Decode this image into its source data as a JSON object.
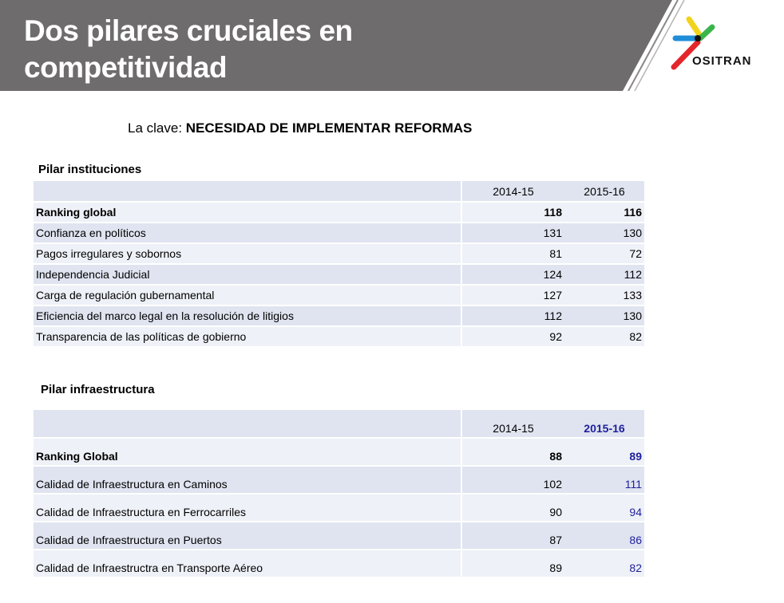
{
  "header": {
    "title_line1": "Dos pilares cruciales en",
    "title_line2": "competitividad",
    "logo_text": "OSITRAN"
  },
  "subtitle": {
    "prefix": "La clave: ",
    "emphasis": "NECESIDAD DE IMPLEMENTAR REFORMAS"
  },
  "colors": {
    "banner": "#6e6c6c",
    "table_row_a": "#dfe4f0",
    "table_row_b": "#eef1f7",
    "blue_value": "#1f1f9c"
  },
  "institutions": {
    "title": "Pilar instituciones",
    "columns": [
      "",
      "2014-15",
      "2015-16"
    ],
    "rows": [
      {
        "label": "Ranking global",
        "v2014": "118",
        "v2015": "116"
      },
      {
        "label": "Confianza en políticos",
        "v2014": "131",
        "v2015": "130"
      },
      {
        "label": "Pagos irregulares y sobornos",
        "v2014": "81",
        "v2015": "72"
      },
      {
        "label": "Independencia Judicial",
        "v2014": "124",
        "v2015": "112"
      },
      {
        "label": "Carga de regulación gubernamental",
        "v2014": "127",
        "v2015": "133"
      },
      {
        "label": "Eficiencia del marco legal en la resolución de litigios",
        "v2014": "112",
        "v2015": "130"
      },
      {
        "label": "Transparencia de las políticas de gobierno",
        "v2014": "92",
        "v2015": "82"
      }
    ]
  },
  "infrastructure": {
    "title": "Pilar infraestructura",
    "columns": [
      "",
      "2014-15",
      "2015-16"
    ],
    "rows": [
      {
        "label": "Ranking Global",
        "v2014": "88",
        "v2015": "89"
      },
      {
        "label": "Calidad de Infraestructura en Caminos",
        "v2014": "102",
        "v2015": "111"
      },
      {
        "label": "Calidad de Infraestructura en Ferrocarriles",
        "v2014": "90",
        "v2015": "94"
      },
      {
        "label": "Calidad de Infraestructura en Puertos",
        "v2014": "87",
        "v2015": "86"
      },
      {
        "label": "Calidad de Infraestructra en Transporte Aéreo",
        "v2014": "89",
        "v2015": "82"
      }
    ]
  }
}
